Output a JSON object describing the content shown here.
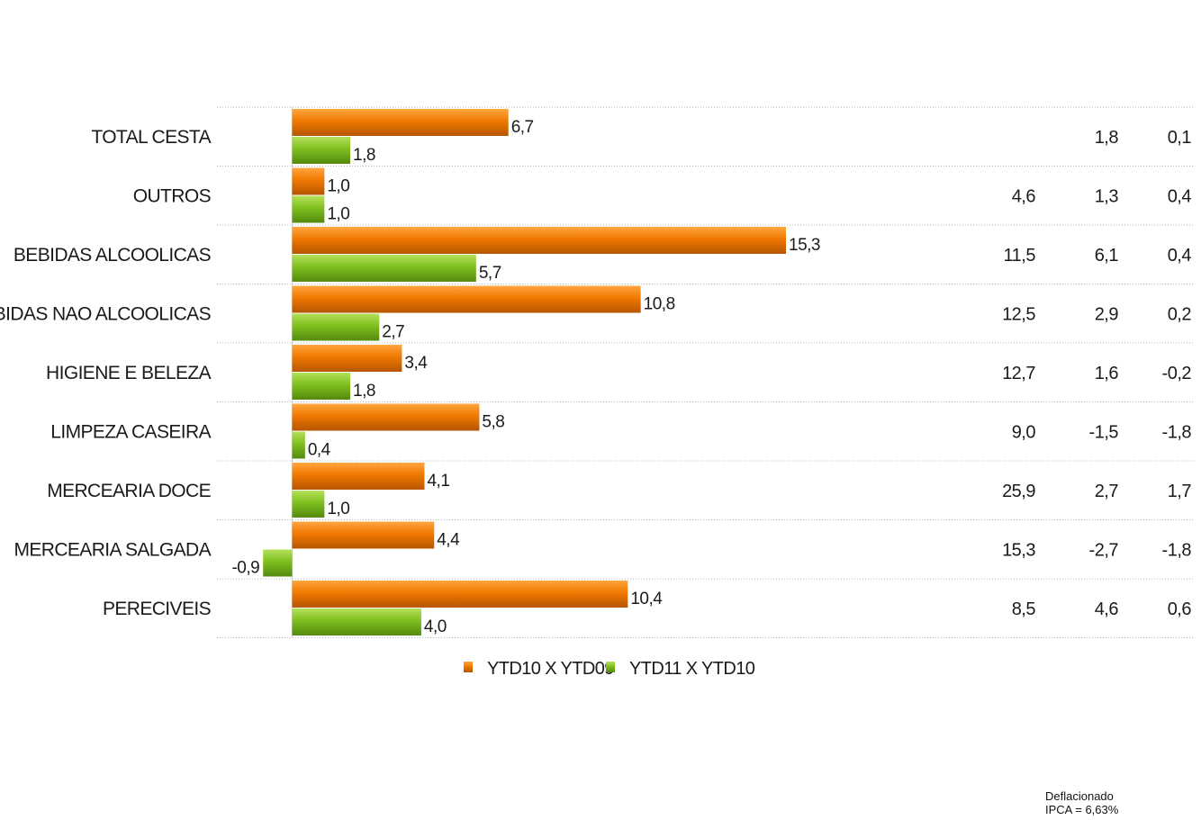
{
  "chart_data": {
    "type": "bar",
    "orientation": "horizontal",
    "categories": [
      "TOTAL CESTA",
      "OUTROS",
      "BEBIDAS ALCOOLICAS",
      "BEBIDAS NAO ALCOOLICAS",
      "HIGIENE E BELEZA",
      "LIMPEZA CASEIRA",
      "MERCEARIA DOCE",
      "MERCEARIA SALGADA",
      "PERECIVEIS"
    ],
    "series": [
      {
        "name": "YTD10 X YTD09",
        "color": "#f07800",
        "values": [
          6.7,
          1.0,
          15.3,
          10.8,
          3.4,
          5.8,
          4.1,
          4.4,
          10.4
        ],
        "labels": [
          "6,7",
          "1,0",
          "15,3",
          "10,8",
          "3,4",
          "5,8",
          "4,1",
          "4,4",
          "10,4"
        ]
      },
      {
        "name": "YTD11 X YTD10",
        "color": "#7fbf1f",
        "values": [
          1.8,
          1.0,
          5.7,
          2.7,
          1.8,
          0.4,
          1.0,
          -0.9,
          4.0
        ],
        "labels": [
          "1,8",
          "1,0",
          "5,7",
          "2,7",
          "1,8",
          "0,4",
          "1,0",
          "-0,9",
          "4,0"
        ]
      }
    ],
    "side_columns": [
      {
        "values": [
          "",
          "4,6",
          "11,5",
          "12,5",
          "12,7",
          "9,0",
          "25,9",
          "15,3",
          "8,5"
        ]
      },
      {
        "values": [
          "1,8",
          "1,3",
          "6,1",
          "2,9",
          "1,6",
          "-1,5",
          "2,7",
          "-2,7",
          "4,6"
        ]
      },
      {
        "values": [
          "0,1",
          "0,4",
          "0,4",
          "0,2",
          "-0,2",
          "-1,8",
          "1,7",
          "-1,8",
          "0,6"
        ]
      }
    ],
    "xlim": [
      -2.3,
      15.3
    ],
    "grid": "horizontal dotted separators between categories",
    "legend": "bottom-center",
    "title": "",
    "xlabel": "",
    "ylabel": ""
  },
  "footnote": {
    "line1": "Deflacionado",
    "line2": "IPCA = 6,63%"
  }
}
